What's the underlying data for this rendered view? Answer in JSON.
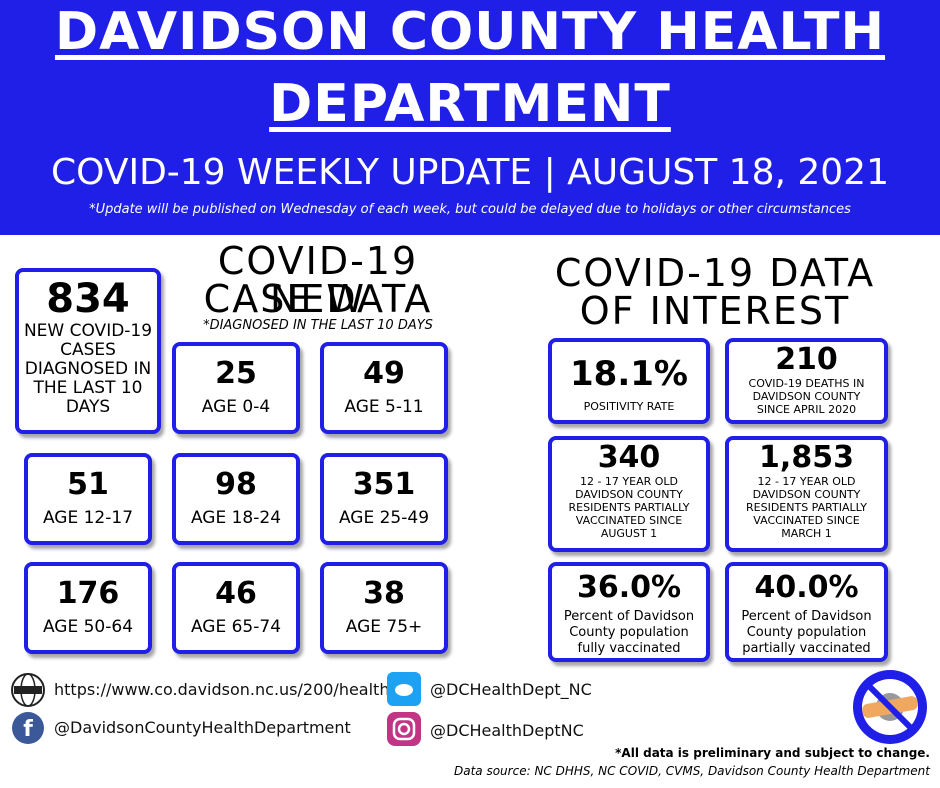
{
  "header": {
    "title_line1": "DAVIDSON COUNTY HEALTH",
    "title_line2": "DEPARTMENT",
    "subtitle": "COVID-19 WEEKLY UPDATE | AUGUST 18, 2021",
    "note": "*Update will be published on Wednesday of each week, but could be delayed due to holidays or other circumstances"
  },
  "new_cases": {
    "title_line1": "COVID-19 NEW",
    "title_line2": "CASE DATA",
    "note": "*DIAGNOSED IN THE LAST 10 DAYS",
    "total": {
      "value": "834",
      "label": "NEW COVID-19 CASES DIAGNOSED IN THE LAST 10 DAYS"
    },
    "age_groups": [
      {
        "value": "25",
        "label": "AGE 0-4"
      },
      {
        "value": "49",
        "label": "AGE 5-11"
      },
      {
        "value": "51",
        "label": "AGE 12-17"
      },
      {
        "value": "98",
        "label": "AGE 18-24"
      },
      {
        "value": "351",
        "label": "AGE 25-49"
      },
      {
        "value": "176",
        "label": "AGE 50-64"
      },
      {
        "value": "46",
        "label": "AGE 65-74"
      },
      {
        "value": "38",
        "label": "AGE 75+"
      }
    ]
  },
  "data_of_interest": {
    "title_line1": "COVID-19 DATA",
    "title_line2": "OF INTEREST",
    "items": [
      {
        "value": "18.1%",
        "label": "POSITIVITY RATE"
      },
      {
        "value": "210",
        "label": "COVID-19 DEATHS IN DAVIDSON COUNTY SINCE APRIL 2020"
      },
      {
        "value": "340",
        "label": "12 - 17 YEAR OLD DAVIDSON COUNTY RESIDENTS PARTIALLY VACCINATED SINCE AUGUST 1"
      },
      {
        "value": "1,853",
        "label": "12 - 17 YEAR OLD DAVIDSON COUNTY RESIDENTS PARTIALLY VACCINATED SINCE MARCH 1"
      },
      {
        "value": "36.0%",
        "label": "Percent of Davidson County population fully vaccinated"
      },
      {
        "value": "40.0%",
        "label": "Percent of Davidson County population partially vaccinated"
      }
    ]
  },
  "contacts": {
    "website": "https://www.co.davidson.nc.us/200/health",
    "facebook": "@DavidsonCountyHealthDepartment",
    "twitter": "@DCHealthDept_NC",
    "instagram": "@DCHealthDeptNC"
  },
  "footer": {
    "disclaimer": "*All data is preliminary and subject to change.",
    "source": "Data source: NC DHHS, NC COVID, CVMS, Davidson County Health Department"
  }
}
